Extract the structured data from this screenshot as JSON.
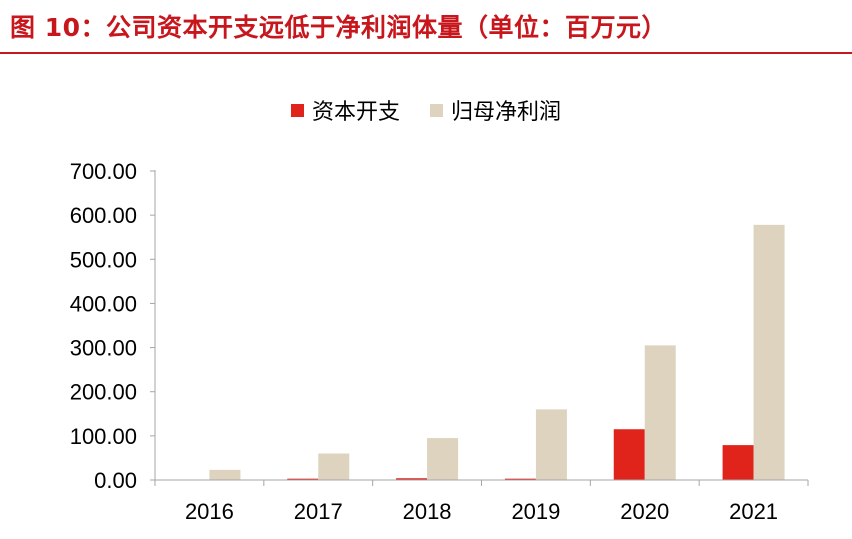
{
  "title": "图 10：公司资本开支远低于净利润体量（单位：百万元）",
  "colors": {
    "capex": "#e0231b",
    "net_profit": "#ddd3bf",
    "title": "#c8161d",
    "axis": "#a6a6a6"
  },
  "chart_data": {
    "type": "bar",
    "categories": [
      "2016",
      "2017",
      "2018",
      "2019",
      "2020",
      "2021"
    ],
    "series": [
      {
        "name": "资本开支",
        "values": [
          1,
          3,
          4,
          3,
          115,
          79
        ]
      },
      {
        "name": "归母净利润",
        "values": [
          23,
          60,
          95,
          160,
          305,
          578
        ]
      }
    ],
    "ylim": [
      0,
      700
    ],
    "yticks": [
      "0.00",
      "100.00",
      "200.00",
      "300.00",
      "400.00",
      "500.00",
      "600.00",
      "700.00"
    ],
    "legend": "top-center",
    "grid": false
  }
}
